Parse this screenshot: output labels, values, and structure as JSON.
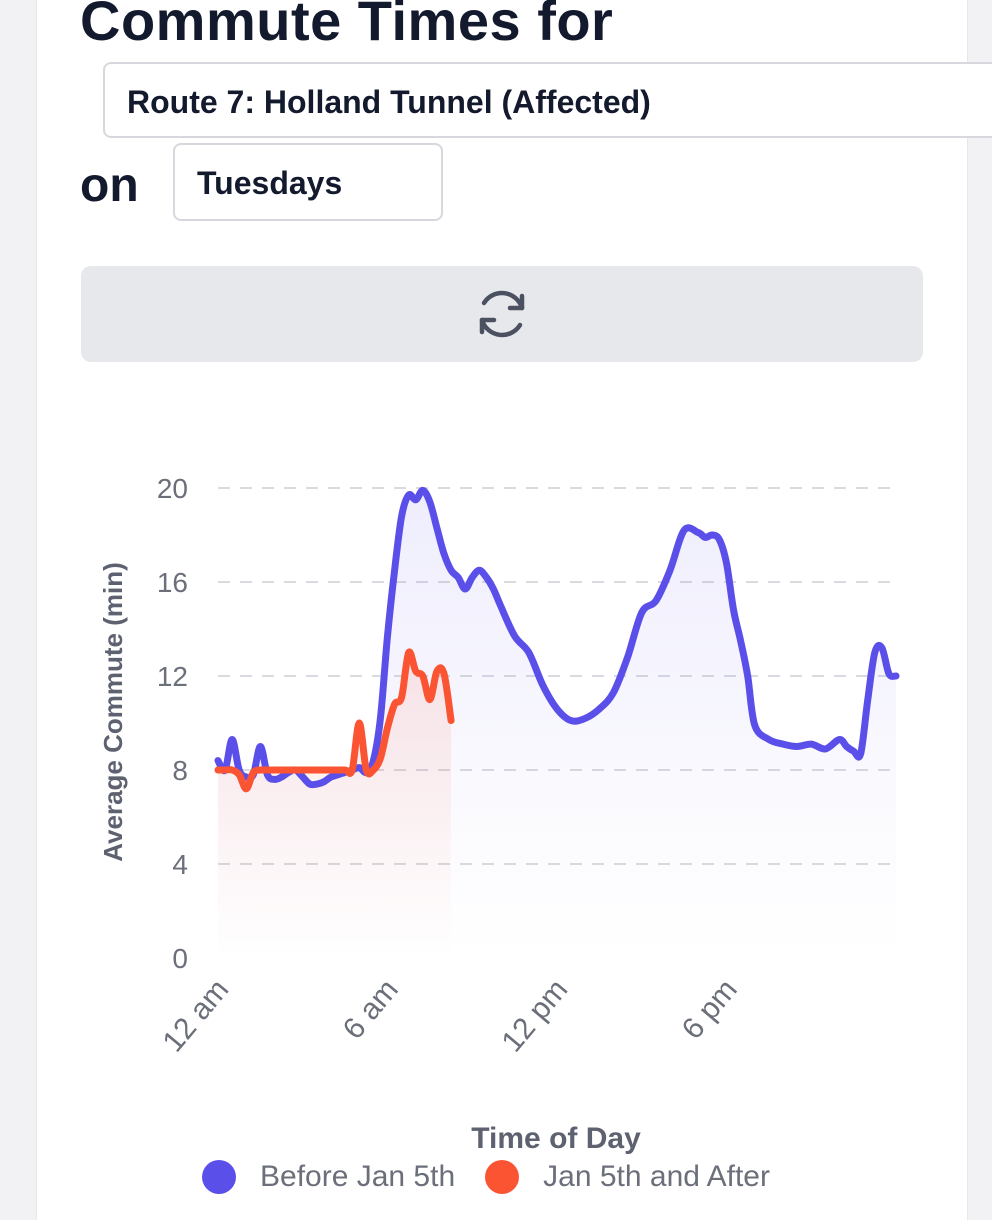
{
  "header": {
    "title": "Commute Times for",
    "route_value": "Route 7: Holland Tunnel (Affected)",
    "on_label": "on",
    "day_value": "Tuesdays"
  },
  "refresh": {
    "icon": "refresh-icon"
  },
  "colors": {
    "series_before": "#5b4fe9",
    "series_after": "#fb5433",
    "grid": "#d9dbe0",
    "axis_text": "#6b6f7a",
    "axis_title": "#5d6170"
  },
  "chart_data": {
    "type": "line",
    "title": "",
    "xlabel": "Time of Day",
    "ylabel": "Average Commute (min)",
    "xlim": [
      0,
      24
    ],
    "ylim": [
      0,
      20
    ],
    "y_ticks": [
      0,
      4,
      8,
      12,
      16,
      20
    ],
    "x_ticks": [
      {
        "value": 0,
        "label": "12 am"
      },
      {
        "value": 6,
        "label": "6 am"
      },
      {
        "value": 12,
        "label": "12 pm"
      },
      {
        "value": 18,
        "label": "6 pm"
      }
    ],
    "grid": true,
    "legend": "bottom",
    "series": [
      {
        "name": "Before Jan 5th",
        "color": "#5b4fe9",
        "x": [
          0,
          0.25,
          0.5,
          0.75,
          1.0,
          1.25,
          1.5,
          1.75,
          2.0,
          2.25,
          2.5,
          2.75,
          3.0,
          3.25,
          3.5,
          3.75,
          4.0,
          4.25,
          4.5,
          4.75,
          5.0,
          5.25,
          5.5,
          5.75,
          6.0,
          6.25,
          6.5,
          6.75,
          7.0,
          7.25,
          7.5,
          7.75,
          8.0,
          8.25,
          8.5,
          8.75,
          9.0,
          9.25,
          9.5,
          9.75,
          10.0,
          10.5,
          11.0,
          11.5,
          12.0,
          12.5,
          13.0,
          13.5,
          14.0,
          14.5,
          15.0,
          15.5,
          16.0,
          16.5,
          17.0,
          17.25,
          17.5,
          17.75,
          18.0,
          18.25,
          18.5,
          18.75,
          19.0,
          19.5,
          20.0,
          20.5,
          21.0,
          21.5,
          22.0,
          22.25,
          22.5,
          22.75,
          23.0,
          23.25,
          23.5,
          23.75,
          24.0
        ],
        "values": [
          8.4,
          8.0,
          9.3,
          8.0,
          7.7,
          7.8,
          9.0,
          7.8,
          7.6,
          7.7,
          7.9,
          8.0,
          7.7,
          7.4,
          7.4,
          7.5,
          7.7,
          7.8,
          7.9,
          8.0,
          8.1,
          7.9,
          8.4,
          10.2,
          13.7,
          16.5,
          18.8,
          19.7,
          19.5,
          19.9,
          19.4,
          18.3,
          17.2,
          16.5,
          16.2,
          15.7,
          16.2,
          16.5,
          16.2,
          15.7,
          15.0,
          13.7,
          13.0,
          11.6,
          10.6,
          10.1,
          10.2,
          10.6,
          11.3,
          12.8,
          14.7,
          15.2,
          16.5,
          18.2,
          18.1,
          17.9,
          18.0,
          17.8,
          16.8,
          14.8,
          13.5,
          12.0,
          9.9,
          9.3,
          9.1,
          9.0,
          9.1,
          8.9,
          9.3,
          9.0,
          8.8,
          8.7,
          11.0,
          13.0,
          13.2,
          12.1,
          12.0
        ]
      },
      {
        "name": "Jan 5th and After",
        "color": "#fb5433",
        "x": [
          0,
          0.25,
          0.5,
          0.75,
          1.0,
          1.25,
          1.5,
          1.75,
          2.0,
          2.5,
          3.0,
          3.5,
          4.0,
          4.5,
          4.75,
          5.0,
          5.25,
          5.5,
          5.75,
          6.0,
          6.25,
          6.5,
          6.75,
          7.0,
          7.25,
          7.5,
          7.75,
          8.0,
          8.25
        ],
        "values": [
          8.0,
          8.0,
          8.0,
          7.8,
          7.2,
          7.9,
          8.0,
          8.0,
          8.0,
          8.0,
          8.0,
          8.0,
          8.0,
          8.0,
          8.0,
          10.0,
          8.0,
          8.0,
          8.5,
          9.8,
          10.8,
          11.1,
          13.0,
          12.2,
          12.0,
          11.0,
          12.2,
          12.1,
          10.1
        ]
      }
    ]
  }
}
